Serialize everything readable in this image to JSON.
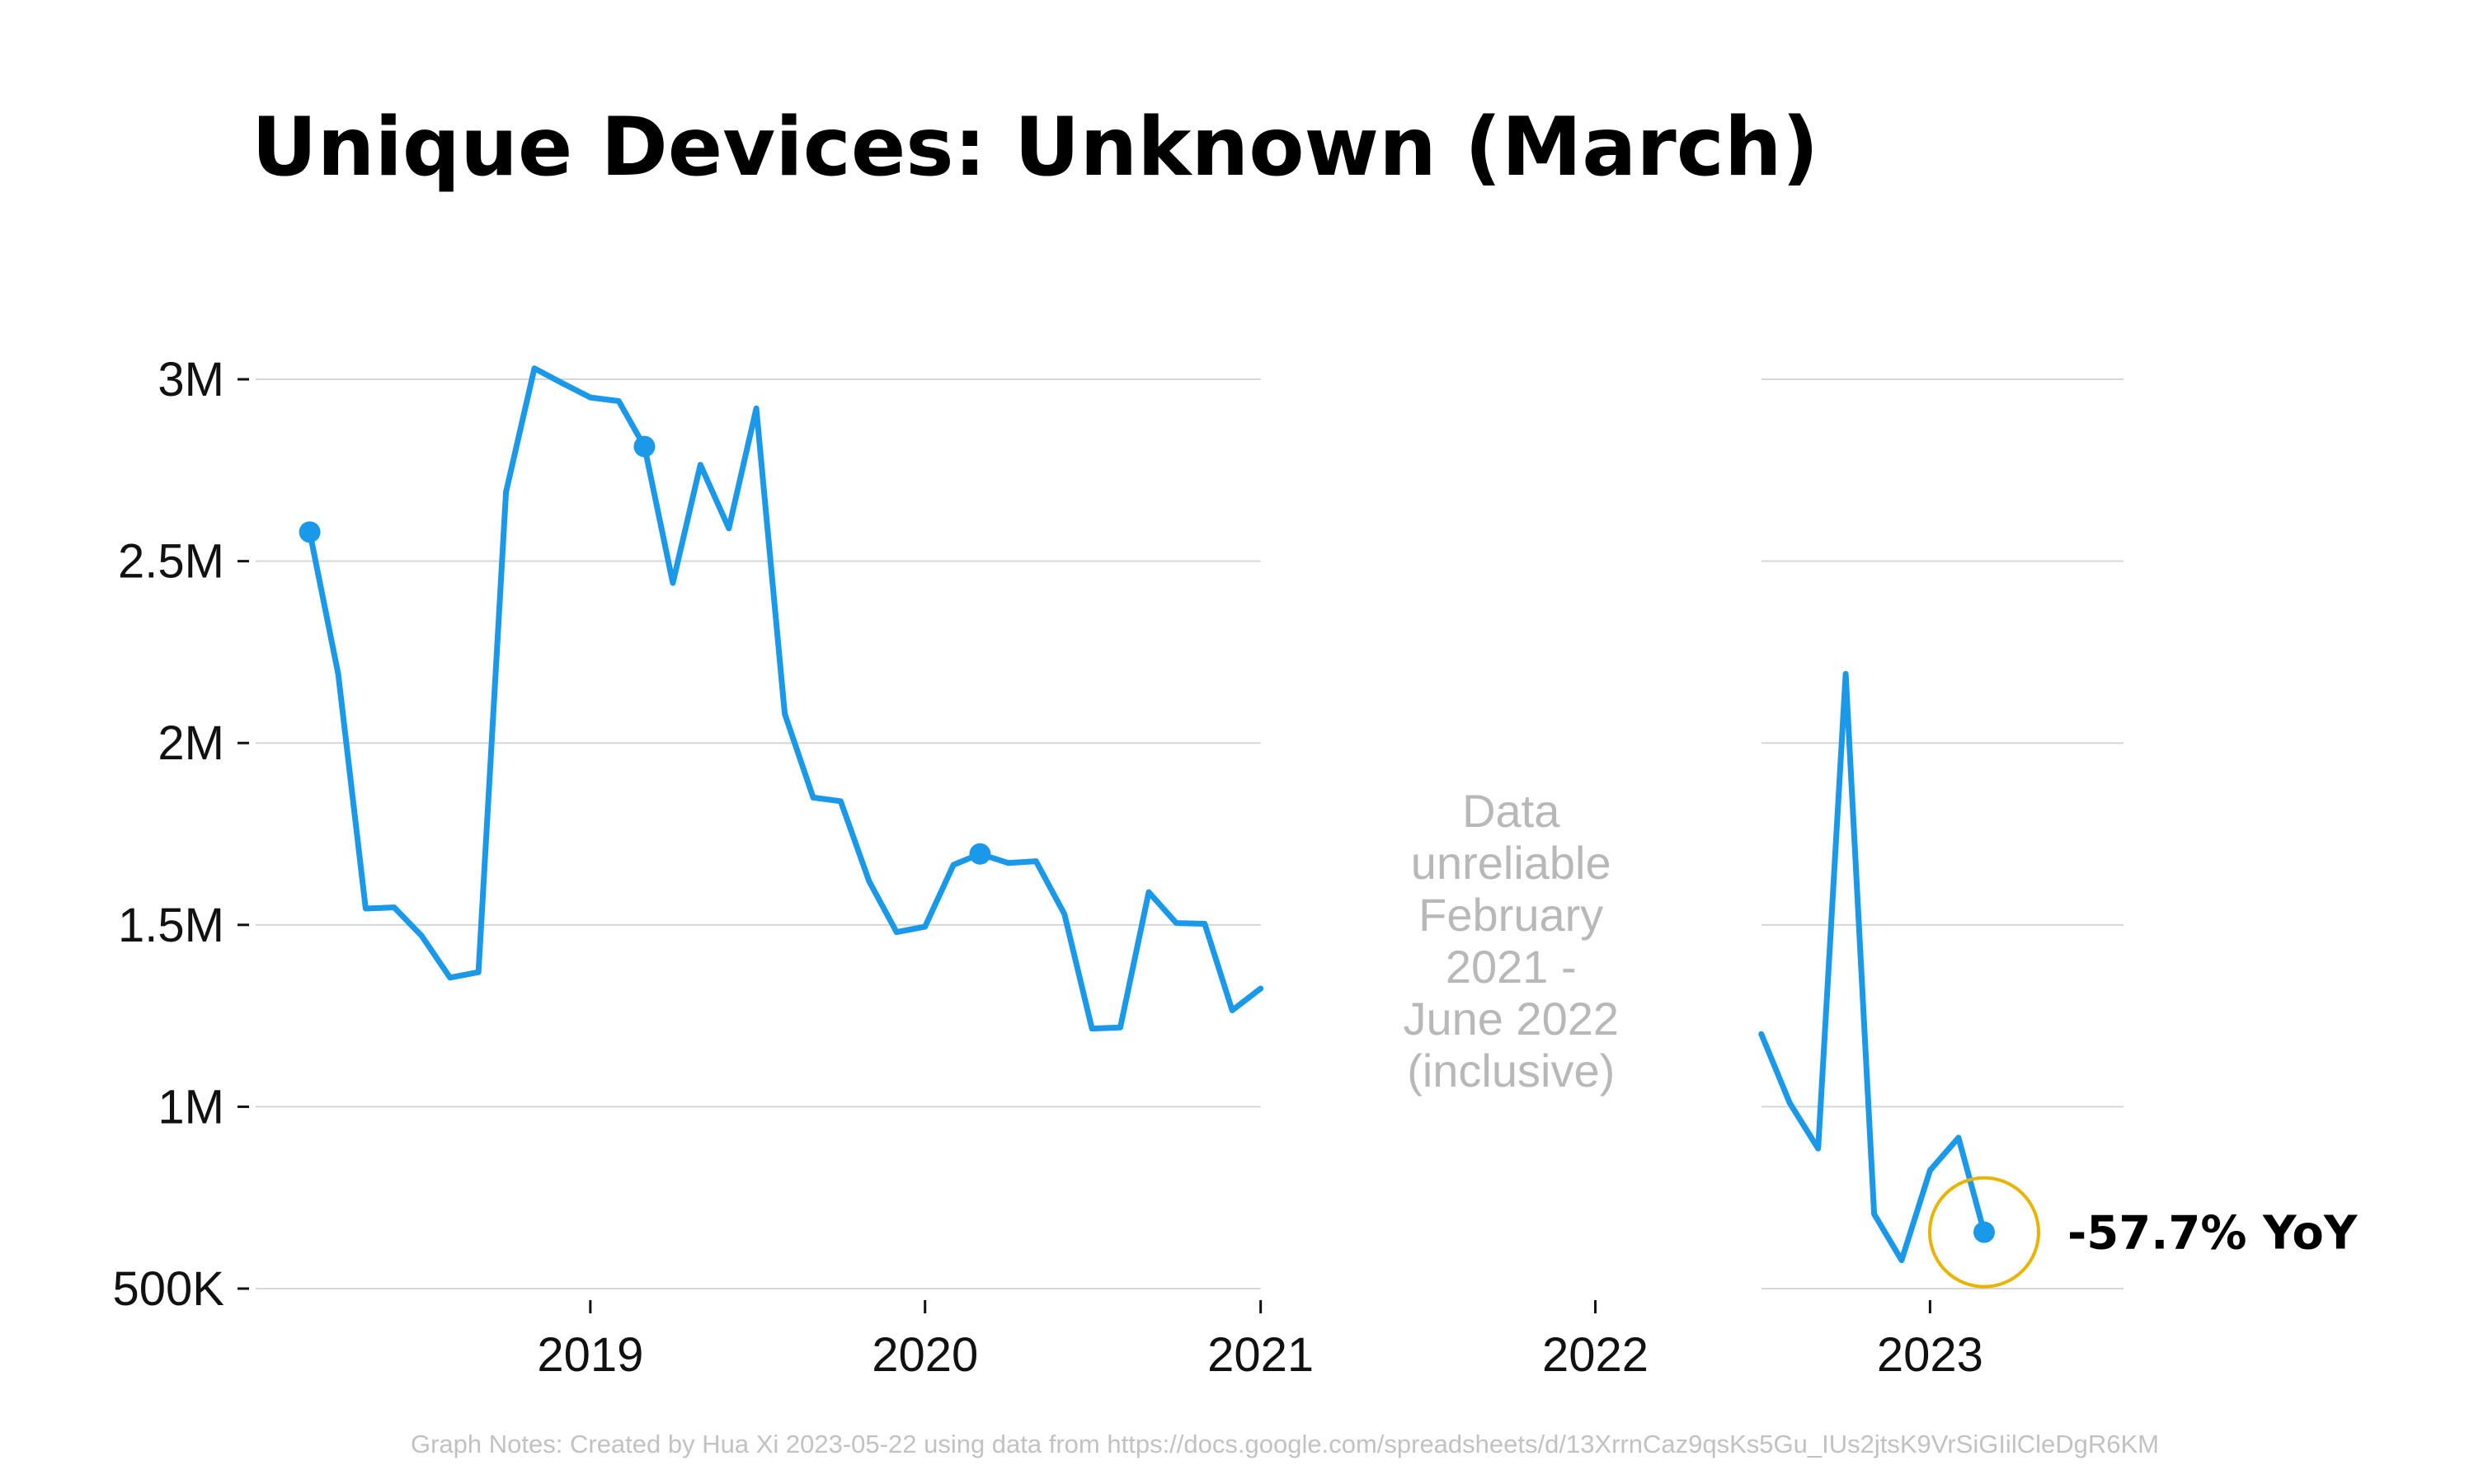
{
  "chart_data": {
    "type": "line",
    "title": "Unique Devices: Unknown (March)",
    "xlabel": "",
    "ylabel": "",
    "grid": true,
    "xlim": [
      "2018-01-01",
      "2023-07-31"
    ],
    "ylim": [
      500000,
      3050000
    ],
    "y_ticks": [
      {
        "value": 3000000,
        "label": "3M"
      },
      {
        "value": 2500000,
        "label": "2.5M"
      },
      {
        "value": 2000000,
        "label": "2M"
      },
      {
        "value": 1500000,
        "label": "1.5M"
      },
      {
        "value": 1000000,
        "label": "1M"
      },
      {
        "value": 500000,
        "label": "500K"
      }
    ],
    "x_ticks": [
      {
        "value": "2019-01-01",
        "label": "2019"
      },
      {
        "value": "2020-01-01",
        "label": "2020"
      },
      {
        "value": "2021-01-01",
        "label": "2021"
      },
      {
        "value": "2022-01-01",
        "label": "2022"
      },
      {
        "value": "2023-01-01",
        "label": "2023"
      }
    ],
    "gaps": [
      {
        "start": "2021-01-01",
        "end": "2022-07-01",
        "note": [
          "Data",
          "unreliable",
          "February",
          "2021 -",
          "June 2022",
          "(inclusive)"
        ]
      }
    ],
    "series": [
      {
        "segments": [
          [
            {
              "x": "2018-03-01",
              "y": 2580000
            },
            {
              "x": "2018-04-01",
              "y": 2190000
            },
            {
              "x": "2018-05-01",
              "y": 1545000
            },
            {
              "x": "2018-06-01",
              "y": 1548000
            },
            {
              "x": "2018-07-01",
              "y": 1470000
            },
            {
              "x": "2018-08-01",
              "y": 1355000
            },
            {
              "x": "2018-09-01",
              "y": 1370000
            },
            {
              "x": "2018-10-01",
              "y": 2690000
            },
            {
              "x": "2018-11-01",
              "y": 3030000
            },
            {
              "x": "2018-12-01",
              "y": 2990000
            },
            {
              "x": "2019-01-01",
              "y": 2950000
            },
            {
              "x": "2019-02-01",
              "y": 2940000
            },
            {
              "x": "2019-03-01",
              "y": 2815000
            },
            {
              "x": "2019-04-01",
              "y": 2440000
            },
            {
              "x": "2019-05-01",
              "y": 2765000
            },
            {
              "x": "2019-06-01",
              "y": 2590000
            },
            {
              "x": "2019-07-01",
              "y": 2920000
            },
            {
              "x": "2019-08-01",
              "y": 2080000
            },
            {
              "x": "2019-09-01",
              "y": 1850000
            },
            {
              "x": "2019-10-01",
              "y": 1840000
            },
            {
              "x": "2019-11-01",
              "y": 1620000
            },
            {
              "x": "2019-12-01",
              "y": 1480000
            },
            {
              "x": "2020-01-01",
              "y": 1495000
            },
            {
              "x": "2020-02-01",
              "y": 1665000
            },
            {
              "x": "2020-03-01",
              "y": 1695000
            },
            {
              "x": "2020-04-01",
              "y": 1670000
            },
            {
              "x": "2020-05-01",
              "y": 1675000
            },
            {
              "x": "2020-06-01",
              "y": 1530000
            },
            {
              "x": "2020-07-01",
              "y": 1215000
            },
            {
              "x": "2020-08-01",
              "y": 1218000
            },
            {
              "x": "2020-09-01",
              "y": 1590000
            },
            {
              "x": "2020-10-01",
              "y": 1505000
            },
            {
              "x": "2020-11-01",
              "y": 1503000
            },
            {
              "x": "2020-12-01",
              "y": 1265000
            },
            {
              "x": "2021-01-01",
              "y": 1325000
            }
          ],
          [
            {
              "x": "2022-07-01",
              "y": 1200000
            },
            {
              "x": "2022-08-01",
              "y": 1010000
            },
            {
              "x": "2022-09-01",
              "y": 885000
            },
            {
              "x": "2022-10-01",
              "y": 2190000
            },
            {
              "x": "2022-11-01",
              "y": 705000
            },
            {
              "x": "2022-12-01",
              "y": 578000
            },
            {
              "x": "2023-01-01",
              "y": 825000
            },
            {
              "x": "2023-02-01",
              "y": 915000
            },
            {
              "x": "2023-03-01",
              "y": 655000
            }
          ]
        ],
        "highlighted_points": [
          {
            "x": "2018-03-01",
            "y": 2580000
          },
          {
            "x": "2019-03-01",
            "y": 2815000
          },
          {
            "x": "2020-03-01",
            "y": 1695000
          },
          {
            "x": "2023-03-01",
            "y": 655000
          }
        ],
        "color": "#1a98ea"
      }
    ],
    "annotation": {
      "x": "2023-03-01",
      "y": 655000,
      "text": "-57.7% YoY",
      "circle_color": "#e8b400"
    },
    "notes": "Graph Notes: Created by Hua Xi 2023-05-22 using data from https://docs.google.com/spreadsheets/d/13XrrnCaz9qsKs5Gu_IUs2jtsK9VrSiGIilCleDgR6KM"
  }
}
